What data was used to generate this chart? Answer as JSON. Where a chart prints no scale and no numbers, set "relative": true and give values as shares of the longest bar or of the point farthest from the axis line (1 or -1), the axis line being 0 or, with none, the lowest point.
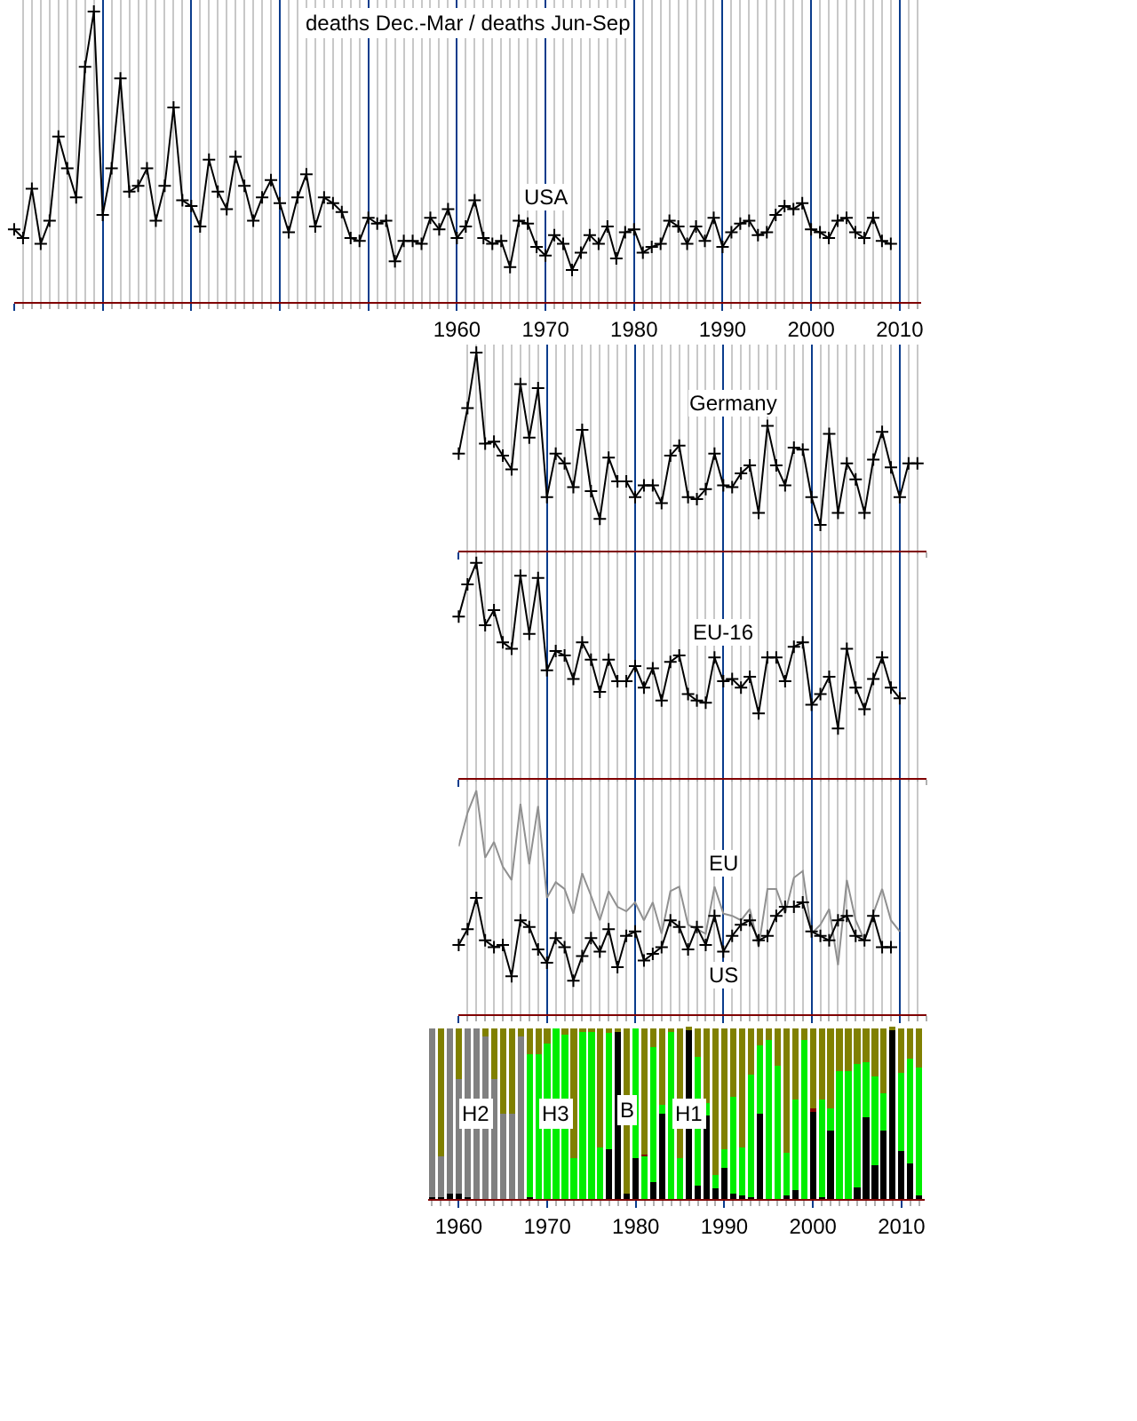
{
  "chart_data": [
    {
      "type": "line",
      "title": "deaths Dec.-Mar / deaths Jun-Sep",
      "relative": true,
      "grid": "x",
      "marker": "cross",
      "xlim": [
        1910,
        2012.4
      ],
      "xticks": [
        {
          "value": 1910,
          "label": null
        },
        {
          "value": 1920,
          "label": null
        },
        {
          "value": 1930,
          "label": null
        },
        {
          "value": 1940,
          "label": null
        },
        {
          "value": 1950,
          "label": null
        },
        1960,
        1970,
        1980,
        1990,
        2000,
        2010
      ],
      "series": [
        {
          "name": "USA",
          "color": "#000000",
          "x": [
            1910,
            1911,
            1912,
            1913,
            1914,
            1915,
            1916,
            1917,
            1918,
            1919,
            1920,
            1921,
            1922,
            1923,
            1924,
            1925,
            1926,
            1927,
            1928,
            1929,
            1930,
            1931,
            1932,
            1933,
            1934,
            1935,
            1936,
            1937,
            1938,
            1939,
            1940,
            1941,
            1942,
            1943,
            1944,
            1945,
            1946,
            1947,
            1948,
            1949,
            1950,
            1951,
            1952,
            1953,
            1954,
            1955,
            1956,
            1957,
            1958,
            1959,
            1960,
            1961,
            1962,
            1963,
            1964,
            1965,
            1966,
            1967,
            1968,
            1969,
            1970,
            1971,
            1972,
            1973,
            1974,
            1975,
            1976,
            1977,
            1978,
            1979,
            1980,
            1981,
            1982,
            1983,
            1984,
            1985,
            1986,
            1987,
            1988,
            1989,
            1990,
            1991,
            1992,
            1993,
            1994,
            1995,
            1996,
            1997,
            1998,
            1999,
            2000,
            2001,
            2002,
            2003,
            2004,
            2005,
            2006,
            2007,
            2008,
            2009
          ],
          "values": [
            0.25,
            0.22,
            0.39,
            0.2,
            0.28,
            0.57,
            0.46,
            0.36,
            0.81,
            1.0,
            0.3,
            0.46,
            0.77,
            0.38,
            0.4,
            0.46,
            0.28,
            0.4,
            0.67,
            0.35,
            0.33,
            0.26,
            0.49,
            0.38,
            0.32,
            0.5,
            0.4,
            0.28,
            0.36,
            0.42,
            0.34,
            0.24,
            0.36,
            0.44,
            0.26,
            0.36,
            0.34,
            0.31,
            0.22,
            0.21,
            0.29,
            0.27,
            0.28,
            0.14,
            0.21,
            0.21,
            0.2,
            0.29,
            0.25,
            0.32,
            0.22,
            0.26,
            0.35,
            0.22,
            0.2,
            0.21,
            0.12,
            0.28,
            0.27,
            0.19,
            0.16,
            0.23,
            0.2,
            0.11,
            0.17,
            0.23,
            0.2,
            0.26,
            0.15,
            0.24,
            0.25,
            0.17,
            0.19,
            0.2,
            0.28,
            0.26,
            0.2,
            0.26,
            0.21,
            0.29,
            0.19,
            0.24,
            0.27,
            0.28,
            0.23,
            0.24,
            0.3,
            0.33,
            0.32,
            0.34,
            0.25,
            0.24,
            0.22,
            0.28,
            0.29,
            0.24,
            0.22,
            0.29,
            0.21,
            0.2
          ]
        }
      ]
    },
    {
      "type": "line",
      "relative": true,
      "grid": "x",
      "marker": "cross",
      "tick_labels": false,
      "xlim": [
        1960,
        2013
      ],
      "xticks": [
        1960,
        1970,
        1980,
        1990,
        2000,
        2010
      ],
      "series": [
        {
          "name": "Germany",
          "color": "#000000",
          "x": [
            1960,
            1961,
            1962,
            1963,
            1964,
            1965,
            1966,
            1967,
            1968,
            1969,
            1970,
            1971,
            1972,
            1973,
            1974,
            1975,
            1976,
            1977,
            1978,
            1979,
            1980,
            1981,
            1982,
            1983,
            1984,
            1985,
            1986,
            1987,
            1988,
            1989,
            1990,
            1991,
            1992,
            1993,
            1994,
            1995,
            1996,
            1997,
            1998,
            1999,
            2000,
            2001,
            2002,
            2003,
            2004,
            2005,
            2006,
            2007,
            2008,
            2009,
            2010,
            2011,
            2012
          ],
          "values": [
            0.49,
            0.72,
            1.0,
            0.54,
            0.55,
            0.48,
            0.41,
            0.84,
            0.57,
            0.82,
            0.27,
            0.49,
            0.44,
            0.32,
            0.61,
            0.3,
            0.16,
            0.47,
            0.35,
            0.35,
            0.27,
            0.33,
            0.33,
            0.24,
            0.48,
            0.53,
            0.27,
            0.26,
            0.31,
            0.49,
            0.33,
            0.32,
            0.39,
            0.43,
            0.19,
            0.63,
            0.43,
            0.33,
            0.52,
            0.51,
            0.27,
            0.13,
            0.59,
            0.19,
            0.44,
            0.36,
            0.19,
            0.46,
            0.6,
            0.42,
            0.27,
            0.44,
            0.44
          ]
        }
      ]
    },
    {
      "type": "line",
      "relative": true,
      "grid": "x",
      "marker": "cross",
      "tick_labels": false,
      "xlim": [
        1960,
        2013
      ],
      "xticks": [
        1960,
        1970,
        1980,
        1990,
        2000,
        2010
      ],
      "series": [
        {
          "name": "EU-16",
          "color": "#000000",
          "x": [
            1960,
            1961,
            1962,
            1963,
            1964,
            1965,
            1966,
            1967,
            1968,
            1969,
            1970,
            1971,
            1972,
            1973,
            1974,
            1975,
            1976,
            1977,
            1978,
            1979,
            1980,
            1981,
            1982,
            1983,
            1984,
            1985,
            1986,
            1987,
            1988,
            1989,
            1990,
            1991,
            1992,
            1993,
            1994,
            1995,
            1996,
            1997,
            1998,
            1999,
            2000,
            2001,
            2002,
            2003,
            2004,
            2005,
            2006,
            2007,
            2008,
            2009,
            2010
          ],
          "values": [
            0.75,
            0.9,
            1.0,
            0.71,
            0.78,
            0.63,
            0.6,
            0.94,
            0.67,
            0.93,
            0.5,
            0.59,
            0.57,
            0.46,
            0.63,
            0.55,
            0.4,
            0.55,
            0.45,
            0.45,
            0.52,
            0.42,
            0.51,
            0.36,
            0.54,
            0.57,
            0.39,
            0.36,
            0.35,
            0.56,
            0.45,
            0.46,
            0.42,
            0.47,
            0.3,
            0.56,
            0.56,
            0.45,
            0.61,
            0.63,
            0.34,
            0.39,
            0.47,
            0.23,
            0.6,
            0.42,
            0.32,
            0.46,
            0.56,
            0.42,
            0.37
          ]
        }
      ]
    },
    {
      "type": "line",
      "relative": true,
      "grid": "x",
      "marker": "cross",
      "tick_labels": false,
      "xlim": [
        1960,
        2013
      ],
      "xticks": [
        1960,
        1970,
        1980,
        1990,
        2000,
        2010
      ],
      "series": [
        {
          "name": "EU",
          "color": "#909090",
          "marker": "none",
          "x": [
            1960,
            1961,
            1962,
            1963,
            1964,
            1965,
            1966,
            1967,
            1968,
            1969,
            1970,
            1971,
            1972,
            1973,
            1974,
            1975,
            1976,
            1977,
            1978,
            1979,
            1980,
            1981,
            1982,
            1983,
            1984,
            1985,
            1986,
            1987,
            1988,
            1989,
            1990,
            1991,
            1992,
            1993,
            1994,
            1995,
            1996,
            1997,
            1998,
            1999,
            2000,
            2001,
            2002,
            2003,
            2004,
            2005,
            2006,
            2007,
            2008,
            2009,
            2010
          ],
          "values": [
            0.75,
            0.9,
            1.0,
            0.7,
            0.77,
            0.66,
            0.6,
            0.94,
            0.67,
            0.93,
            0.52,
            0.59,
            0.56,
            0.45,
            0.63,
            0.53,
            0.42,
            0.55,
            0.48,
            0.46,
            0.5,
            0.42,
            0.5,
            0.36,
            0.55,
            0.57,
            0.4,
            0.38,
            0.36,
            0.57,
            0.45,
            0.44,
            0.42,
            0.47,
            0.3,
            0.56,
            0.56,
            0.45,
            0.61,
            0.64,
            0.36,
            0.4,
            0.47,
            0.22,
            0.6,
            0.42,
            0.33,
            0.45,
            0.56,
            0.42,
            0.37
          ]
        },
        {
          "name": "US",
          "color": "#000000",
          "x": [
            1960,
            1961,
            1962,
            1963,
            1964,
            1965,
            1966,
            1967,
            1968,
            1969,
            1970,
            1971,
            1972,
            1973,
            1974,
            1975,
            1976,
            1977,
            1978,
            1979,
            1980,
            1981,
            1982,
            1983,
            1984,
            1985,
            1986,
            1987,
            1988,
            1989,
            1990,
            1991,
            1992,
            1993,
            1994,
            1995,
            1996,
            1997,
            1998,
            1999,
            2000,
            2001,
            2002,
            2003,
            2004,
            2005,
            2006,
            2007,
            2008,
            2009
          ],
          "values": [
            0.31,
            0.38,
            0.52,
            0.33,
            0.3,
            0.31,
            0.17,
            0.42,
            0.39,
            0.29,
            0.23,
            0.34,
            0.3,
            0.15,
            0.26,
            0.34,
            0.28,
            0.38,
            0.21,
            0.35,
            0.37,
            0.24,
            0.27,
            0.3,
            0.42,
            0.39,
            0.29,
            0.39,
            0.31,
            0.44,
            0.28,
            0.35,
            0.4,
            0.42,
            0.33,
            0.35,
            0.44,
            0.48,
            0.48,
            0.5,
            0.37,
            0.35,
            0.33,
            0.42,
            0.44,
            0.35,
            0.33,
            0.44,
            0.3,
            0.3
          ]
        }
      ]
    },
    {
      "type": "bar",
      "relative": true,
      "stacked": true,
      "xlim": [
        1956.6,
        2012.6
      ],
      "xticks": [
        1960,
        1970,
        1980,
        1990,
        2000,
        2010
      ],
      "x": [
        1957,
        1958,
        1959,
        1960,
        1961,
        1962,
        1963,
        1964,
        1965,
        1966,
        1967,
        1968,
        1969,
        1970,
        1971,
        1972,
        1973,
        1974,
        1975,
        1976,
        1977,
        1978,
        1979,
        1980,
        1981,
        1982,
        1983,
        1984,
        1985,
        1986,
        1987,
        1988,
        1989,
        1990,
        1991,
        1992,
        1993,
        1994,
        1995,
        1996,
        1997,
        1998,
        1999,
        2000,
        2001,
        2002,
        2003,
        2004,
        2005,
        2006,
        2007,
        2008,
        2009,
        2010,
        2011,
        2012
      ],
      "series": [
        {
          "name": "H1",
          "color": "#000000",
          "values": [
            0.01,
            0.01,
            0.03,
            0.03,
            0.01,
            0,
            0,
            0,
            0,
            0,
            0,
            0.01,
            0,
            0,
            0,
            0,
            0,
            0,
            0,
            0,
            0.29,
            0.98,
            0.03,
            0.24,
            0,
            0.1,
            0.5,
            0,
            0,
            0.99,
            0.08,
            0.49,
            0.06,
            0.18,
            0.03,
            0.02,
            0.01,
            0.5,
            0,
            0,
            0.02,
            0.05,
            0,
            0.51,
            0.01,
            0.4,
            0,
            0,
            0.07,
            0.48,
            0.2,
            0.4,
            0.99,
            0.28,
            0.21,
            0.02
          ]
        },
        {
          "name": "H2",
          "color": "#808080",
          "values": [
            0.99,
            0.24,
            0.97,
            0.67,
            0.99,
            1.0,
            0.95,
            0.7,
            0.5,
            0.5,
            0.95,
            0,
            0,
            0,
            0,
            0,
            0,
            0,
            0,
            0,
            0,
            0,
            0,
            0,
            0,
            0,
            0,
            0,
            0,
            0,
            0,
            0,
            0,
            0,
            0,
            0,
            0,
            0,
            0,
            0,
            0,
            0,
            0,
            0,
            0,
            0,
            0,
            0,
            0,
            0,
            0,
            0,
            0,
            0,
            0,
            0
          ]
        },
        {
          "name": "H3",
          "color": "#00ee00",
          "values": [
            0,
            0,
            0,
            0,
            0,
            0,
            0,
            0,
            0,
            0,
            0,
            0.84,
            0.85,
            0.91,
            1.0,
            0.96,
            0.24,
            0.98,
            0.98,
            0.3,
            0.68,
            0,
            0,
            0.76,
            0.25,
            0.79,
            0.05,
            0.98,
            0.24,
            0,
            0.75,
            0.07,
            0.08,
            0.11,
            0.57,
            0.28,
            0.72,
            0.4,
            0.93,
            0.78,
            0.25,
            0.53,
            0.93,
            0,
            0.57,
            0.13,
            0.75,
            0.75,
            0.72,
            0.32,
            0.52,
            0.22,
            0,
            0.46,
            0.61,
            0.75
          ]
        },
        {
          "color": "#800000",
          "values": [
            0,
            0,
            0,
            0,
            0,
            0,
            0,
            0,
            0,
            0,
            0,
            0,
            0,
            0,
            0,
            0,
            0,
            0,
            0,
            0,
            0,
            0,
            0,
            0,
            0.01,
            0,
            0,
            0,
            0,
            0,
            0,
            0,
            0,
            0,
            0,
            0,
            0,
            0,
            0,
            0,
            0,
            0,
            0,
            0.02,
            0,
            0,
            0,
            0,
            0,
            0,
            0,
            0,
            0,
            0,
            0,
            0
          ]
        },
        {
          "name": "B",
          "color": "#808000",
          "values": [
            0,
            0.75,
            0,
            0.3,
            0,
            0,
            0.05,
            0.3,
            0.5,
            0.5,
            0.05,
            0.15,
            0.15,
            0.09,
            0,
            0.04,
            0.76,
            0.02,
            0.02,
            0.7,
            0.03,
            0.02,
            0.97,
            0,
            0.74,
            0.11,
            0.45,
            0.02,
            0.76,
            0.01,
            0.17,
            0.44,
            0.86,
            0.71,
            0.4,
            0.7,
            0.27,
            0.1,
            0.07,
            0.22,
            0.73,
            0.42,
            0.07,
            0.47,
            0.42,
            0.47,
            0.25,
            0.25,
            0.21,
            0.2,
            0.28,
            0.38,
            0.01,
            0.26,
            0.18,
            0.23
          ]
        }
      ]
    }
  ]
}
